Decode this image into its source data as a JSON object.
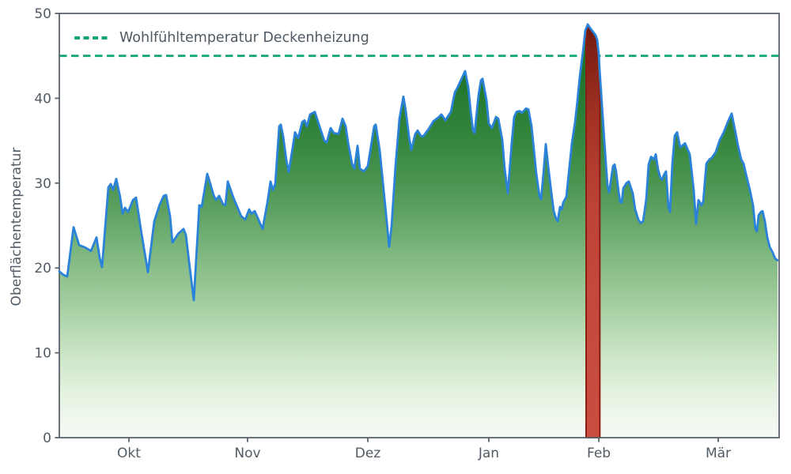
{
  "chart_data": {
    "type": "area",
    "title": "",
    "xlabel": "",
    "ylabel": "Oberflächentemperatur",
    "ylim": [
      0,
      50
    ],
    "grid": false,
    "background_color": "#ffffff",
    "axis_color": "#5b636e",
    "text_color": "#525b64",
    "legend": {
      "position": "top-left"
    },
    "y_ticks": [
      0,
      10,
      20,
      30,
      40,
      50
    ],
    "x_ticks": [
      {
        "label": "Okt",
        "pos": 0.0967
      },
      {
        "label": "Nov",
        "pos": 0.2615
      },
      {
        "label": "Dez",
        "pos": 0.4286
      },
      {
        "label": "Jan",
        "pos": 0.5967
      },
      {
        "label": "Feb",
        "pos": 0.7495
      },
      {
        "label": "Mär",
        "pos": 0.9154
      }
    ],
    "threshold": {
      "label": "Wohlfühltemperatur Deckenheizung",
      "value": 45,
      "color": "#11a678",
      "style": "dashed"
    },
    "highlight_band": {
      "x_start": 0.7319,
      "x_end": 0.7509,
      "edge_color": "#8b1d12",
      "gradient": [
        {
          "offset": 0.0,
          "color": "#671408"
        },
        {
          "offset": 0.08,
          "color": "#7d1f12"
        },
        {
          "offset": 0.25,
          "color": "#a33325"
        },
        {
          "offset": 0.45,
          "color": "#bc4336"
        },
        {
          "offset": 0.65,
          "color": "#c4483b"
        },
        {
          "offset": 1.0,
          "color": "#c94e40"
        }
      ]
    },
    "series": [
      {
        "name": "Oberflächentemperatur",
        "line_color": "#2b82d9",
        "fill_gradient": [
          {
            "offset": 0.0,
            "color": "#176b22"
          },
          {
            "offset": 0.15,
            "color": "#20762c"
          },
          {
            "offset": 0.3,
            "color": "#35863e"
          },
          {
            "offset": 0.42,
            "color": "#4f9855"
          },
          {
            "offset": 0.55,
            "color": "#79b47a"
          },
          {
            "offset": 0.68,
            "color": "#a2cd9f"
          },
          {
            "offset": 0.8,
            "color": "#c9e4c4"
          },
          {
            "offset": 0.9,
            "color": "#e5f2e1"
          },
          {
            "offset": 1.0,
            "color": "#f7fbf5"
          }
        ],
        "points": [
          [
            0.0,
            19.6
          ],
          [
            0.0055,
            19.2
          ],
          [
            0.011,
            19.0
          ],
          [
            0.0198,
            24.8
          ],
          [
            0.0275,
            22.7
          ],
          [
            0.0363,
            22.4
          ],
          [
            0.044,
            22.0
          ],
          [
            0.0516,
            23.6
          ],
          [
            0.056,
            21.2
          ],
          [
            0.0593,
            20.1
          ],
          [
            0.0681,
            29.5
          ],
          [
            0.0714,
            29.9
          ],
          [
            0.0747,
            29.2
          ],
          [
            0.0791,
            30.5
          ],
          [
            0.0846,
            28.3
          ],
          [
            0.0879,
            26.4
          ],
          [
            0.0912,
            27.1
          ],
          [
            0.0956,
            26.6
          ],
          [
            0.1022,
            28.0
          ],
          [
            0.1066,
            28.3
          ],
          [
            0.1132,
            24.6
          ],
          [
            0.1231,
            19.5
          ],
          [
            0.1319,
            25.5
          ],
          [
            0.1396,
            27.5
          ],
          [
            0.1451,
            28.5
          ],
          [
            0.1484,
            28.6
          ],
          [
            0.1538,
            26.1
          ],
          [
            0.1571,
            23.0
          ],
          [
            0.1648,
            24.0
          ],
          [
            0.1725,
            24.6
          ],
          [
            0.1758,
            23.9
          ],
          [
            0.1813,
            20.0
          ],
          [
            0.1868,
            16.2
          ],
          [
            0.1945,
            27.4
          ],
          [
            0.1978,
            27.2
          ],
          [
            0.2055,
            31.1
          ],
          [
            0.2088,
            30.2
          ],
          [
            0.2143,
            28.6
          ],
          [
            0.2176,
            28.0
          ],
          [
            0.222,
            28.5
          ],
          [
            0.2275,
            27.5
          ],
          [
            0.2308,
            27.4
          ],
          [
            0.2341,
            30.2
          ],
          [
            0.2418,
            28.3
          ],
          [
            0.2473,
            27.2
          ],
          [
            0.2527,
            26.1
          ],
          [
            0.2582,
            25.7
          ],
          [
            0.2637,
            26.9
          ],
          [
            0.267,
            26.4
          ],
          [
            0.2714,
            26.7
          ],
          [
            0.2747,
            26.1
          ],
          [
            0.2802,
            25.0
          ],
          [
            0.2824,
            24.6
          ],
          [
            0.289,
            27.7
          ],
          [
            0.2934,
            30.2
          ],
          [
            0.2967,
            29.2
          ],
          [
            0.3,
            29.9
          ],
          [
            0.3055,
            36.7
          ],
          [
            0.3077,
            36.9
          ],
          [
            0.311,
            35.5
          ],
          [
            0.3154,
            32.7
          ],
          [
            0.3187,
            31.3
          ],
          [
            0.3242,
            34.2
          ],
          [
            0.3275,
            36.0
          ],
          [
            0.3319,
            35.3
          ],
          [
            0.3374,
            37.2
          ],
          [
            0.3407,
            37.4
          ],
          [
            0.344,
            36.7
          ],
          [
            0.3484,
            38.1
          ],
          [
            0.3549,
            38.4
          ],
          [
            0.3626,
            36.4
          ],
          [
            0.3681,
            35.0
          ],
          [
            0.3714,
            34.8
          ],
          [
            0.3769,
            36.5
          ],
          [
            0.3813,
            35.9
          ],
          [
            0.3879,
            35.8
          ],
          [
            0.3934,
            37.6
          ],
          [
            0.3978,
            36.7
          ],
          [
            0.4011,
            34.8
          ],
          [
            0.4066,
            32.3
          ],
          [
            0.4099,
            31.7
          ],
          [
            0.4143,
            34.4
          ],
          [
            0.4176,
            31.7
          ],
          [
            0.4231,
            31.4
          ],
          [
            0.4286,
            32.0
          ],
          [
            0.4374,
            36.7
          ],
          [
            0.4396,
            36.9
          ],
          [
            0.4451,
            33.9
          ],
          [
            0.4505,
            29.2
          ],
          [
            0.4538,
            26.4
          ],
          [
            0.4582,
            22.5
          ],
          [
            0.4615,
            24.9
          ],
          [
            0.467,
            32.0
          ],
          [
            0.4725,
            37.6
          ],
          [
            0.478,
            40.2
          ],
          [
            0.4813,
            38.5
          ],
          [
            0.4857,
            35.5
          ],
          [
            0.489,
            33.9
          ],
          [
            0.4945,
            35.8
          ],
          [
            0.4978,
            36.2
          ],
          [
            0.5022,
            35.6
          ],
          [
            0.5055,
            35.5
          ],
          [
            0.5132,
            36.4
          ],
          [
            0.5198,
            37.3
          ],
          [
            0.5275,
            37.8
          ],
          [
            0.5308,
            38.1
          ],
          [
            0.5363,
            37.4
          ],
          [
            0.544,
            38.4
          ],
          [
            0.5495,
            40.7
          ],
          [
            0.5527,
            41.2
          ],
          [
            0.5582,
            42.2
          ],
          [
            0.5637,
            43.2
          ],
          [
            0.5681,
            41.3
          ],
          [
            0.5714,
            38.5
          ],
          [
            0.5747,
            36.2
          ],
          [
            0.5769,
            35.9
          ],
          [
            0.5824,
            40.4
          ],
          [
            0.5857,
            42.1
          ],
          [
            0.5879,
            42.3
          ],
          [
            0.5934,
            39.8
          ],
          [
            0.5967,
            37.0
          ],
          [
            0.6011,
            36.5
          ],
          [
            0.6066,
            37.8
          ],
          [
            0.6099,
            37.6
          ],
          [
            0.6154,
            35.1
          ],
          [
            0.6187,
            31.7
          ],
          [
            0.6231,
            28.8
          ],
          [
            0.6286,
            34.8
          ],
          [
            0.6319,
            37.8
          ],
          [
            0.6352,
            38.4
          ],
          [
            0.6396,
            38.5
          ],
          [
            0.6429,
            38.3
          ],
          [
            0.6484,
            38.8
          ],
          [
            0.6516,
            38.7
          ],
          [
            0.656,
            36.7
          ],
          [
            0.6593,
            33.9
          ],
          [
            0.6626,
            31.1
          ],
          [
            0.667,
            28.5
          ],
          [
            0.6692,
            28.1
          ],
          [
            0.6725,
            31.1
          ],
          [
            0.6758,
            34.6
          ],
          [
            0.6791,
            32.0
          ],
          [
            0.6835,
            28.9
          ],
          [
            0.6868,
            26.7
          ],
          [
            0.6901,
            25.8
          ],
          [
            0.6923,
            25.5
          ],
          [
            0.6956,
            27.2
          ],
          [
            0.6978,
            26.9
          ],
          [
            0.7,
            27.7
          ],
          [
            0.7044,
            28.4
          ],
          [
            0.7088,
            32.0
          ],
          [
            0.7121,
            34.7
          ],
          [
            0.7165,
            37.2
          ],
          [
            0.7198,
            39.7
          ],
          [
            0.7231,
            42.6
          ],
          [
            0.7275,
            45.5
          ],
          [
            0.7308,
            48.0
          ],
          [
            0.7341,
            48.7
          ],
          [
            0.7374,
            48.3
          ],
          [
            0.7418,
            47.8
          ],
          [
            0.7451,
            47.4
          ],
          [
            0.7473,
            46.9
          ],
          [
            0.7495,
            45.2
          ],
          [
            0.7506,
            43.4
          ],
          [
            0.7527,
            40.6
          ],
          [
            0.7549,
            37.8
          ],
          [
            0.7571,
            35.0
          ],
          [
            0.7593,
            32.3
          ],
          [
            0.7615,
            29.7
          ],
          [
            0.7637,
            28.9
          ],
          [
            0.7692,
            32.0
          ],
          [
            0.7714,
            32.2
          ],
          [
            0.7736,
            31.3
          ],
          [
            0.7769,
            29.0
          ],
          [
            0.7791,
            27.8
          ],
          [
            0.7813,
            27.7
          ],
          [
            0.7835,
            29.4
          ],
          [
            0.7879,
            30.0
          ],
          [
            0.7912,
            30.2
          ],
          [
            0.7967,
            28.8
          ],
          [
            0.8,
            26.9
          ],
          [
            0.8044,
            25.7
          ],
          [
            0.8077,
            25.3
          ],
          [
            0.811,
            25.5
          ],
          [
            0.8154,
            28.1
          ],
          [
            0.8187,
            32.2
          ],
          [
            0.822,
            33.1
          ],
          [
            0.8264,
            32.8
          ],
          [
            0.8286,
            33.4
          ],
          [
            0.8319,
            31.6
          ],
          [
            0.8352,
            30.6
          ],
          [
            0.8374,
            30.4
          ],
          [
            0.8396,
            30.9
          ],
          [
            0.8429,
            31.4
          ],
          [
            0.8462,
            27.2
          ],
          [
            0.8484,
            26.6
          ],
          [
            0.8516,
            32.3
          ],
          [
            0.8549,
            35.6
          ],
          [
            0.8582,
            36.0
          ],
          [
            0.8626,
            34.2
          ],
          [
            0.8692,
            34.7
          ],
          [
            0.8758,
            33.4
          ],
          [
            0.8813,
            29.2
          ],
          [
            0.8846,
            25.2
          ],
          [
            0.8879,
            28.0
          ],
          [
            0.8923,
            27.4
          ],
          [
            0.8945,
            27.8
          ],
          [
            0.8989,
            32.3
          ],
          [
            0.9033,
            32.8
          ],
          [
            0.9066,
            33.0
          ],
          [
            0.9121,
            33.7
          ],
          [
            0.9176,
            35.1
          ],
          [
            0.9231,
            36.0
          ],
          [
            0.9286,
            37.2
          ],
          [
            0.9341,
            38.2
          ],
          [
            0.9396,
            35.9
          ],
          [
            0.9429,
            34.4
          ],
          [
            0.9473,
            32.8
          ],
          [
            0.9505,
            32.3
          ],
          [
            0.9538,
            31.1
          ],
          [
            0.9593,
            29.2
          ],
          [
            0.9637,
            27.4
          ],
          [
            0.967,
            24.6
          ],
          [
            0.9692,
            24.3
          ],
          [
            0.9714,
            26.2
          ],
          [
            0.9747,
            26.6
          ],
          [
            0.9769,
            26.7
          ],
          [
            0.9802,
            25.5
          ],
          [
            0.9835,
            23.6
          ],
          [
            0.9868,
            22.5
          ],
          [
            0.9912,
            21.8
          ],
          [
            0.9945,
            21.1
          ],
          [
            0.9978,
            20.9
          ]
        ]
      }
    ]
  }
}
